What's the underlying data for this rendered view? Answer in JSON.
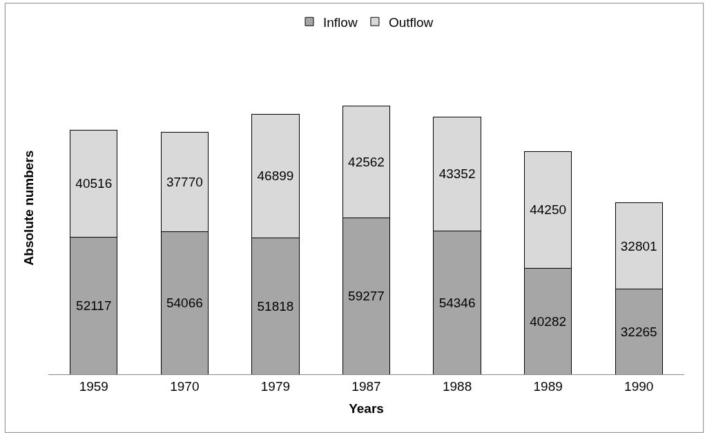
{
  "chart_data": {
    "type": "bar",
    "stacked": true,
    "xlabel": "Years",
    "ylabel": "Absolute numbers",
    "categories": [
      "1959",
      "1970",
      "1979",
      "1987",
      "1988",
      "1989",
      "1990"
    ],
    "series": [
      {
        "name": "Inflow",
        "color": "#a6a6a6",
        "values": [
          52117,
          54066,
          51818,
          59277,
          54346,
          40282,
          32265
        ]
      },
      {
        "name": "Outflow",
        "color": "#d9d9d9",
        "values": [
          40516,
          37770,
          46899,
          42562,
          43352,
          44250,
          32801
        ]
      }
    ],
    "data_labels": true,
    "legend": "top"
  }
}
